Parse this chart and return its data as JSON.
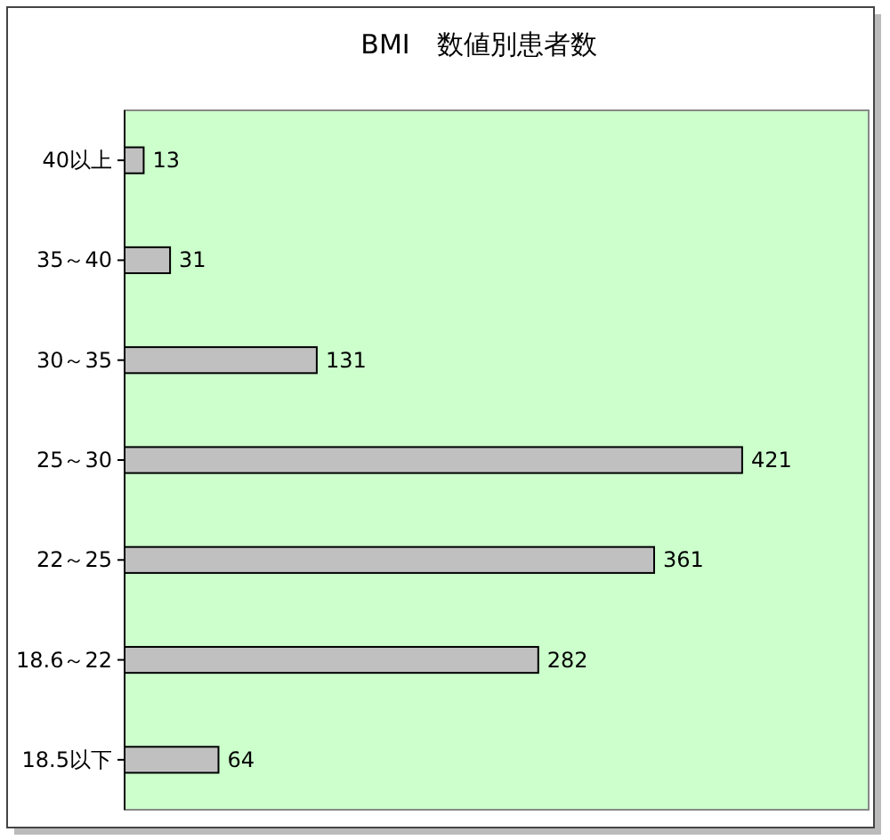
{
  "chart_data": {
    "type": "bar",
    "orientation": "horizontal",
    "title": "BMI　数値別患者数",
    "categories": [
      "40以上",
      "35～40",
      "30～35",
      "25～30",
      "22～25",
      "18.6～22",
      "18.5以下"
    ],
    "values": [
      13,
      31,
      131,
      421,
      361,
      282,
      64
    ],
    "color": "#c0c0c0",
    "data_labels": true
  }
}
